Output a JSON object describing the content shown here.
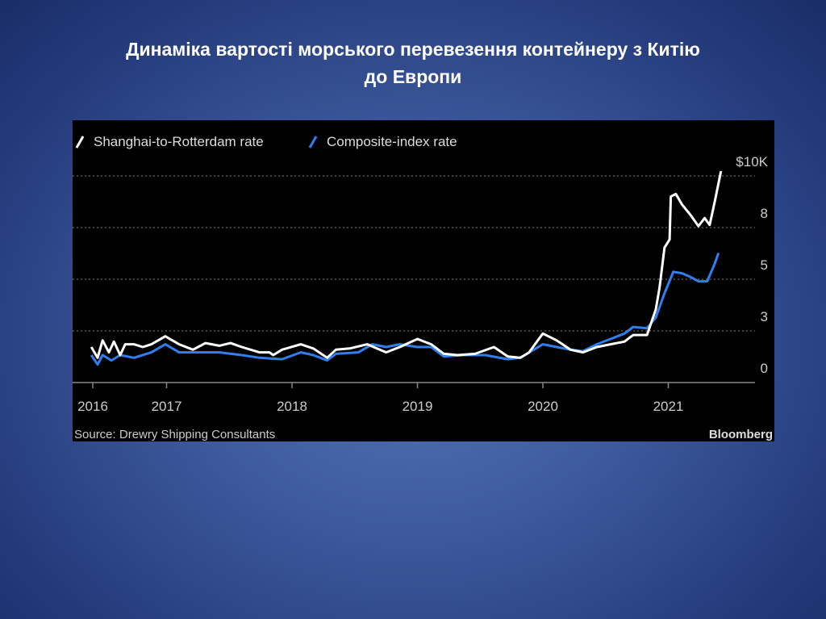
{
  "slide": {
    "title_line1": "Динаміка вартості морського перевезення контейнеру з Китію",
    "title_line2": "до Европи"
  },
  "chart_data": {
    "type": "line",
    "title": "",
    "xlabel": "",
    "ylabel": "",
    "x_ticks": [
      2016,
      2017,
      2018,
      2019,
      2020,
      2021
    ],
    "x_tick_labels": [
      "2016",
      "2017",
      "2018",
      "2019",
      "2020",
      "2021"
    ],
    "y_ticks": [
      0,
      2.5,
      5,
      7.5,
      10
    ],
    "y_tick_labels": [
      "0",
      "3",
      "5",
      "8",
      "$10K"
    ],
    "ylim": [
      0,
      10
    ],
    "xlim": [
      2016.4,
      2021.65
    ],
    "grid": "horizontal dotted",
    "legend_position": "top-left",
    "source": "Source: Drewry Shipping Consultants",
    "brand": "Bloomberg",
    "series": [
      {
        "name": "Shanghai-to-Rotterdam rate",
        "color": "#ffffff",
        "x": [
          2016.4,
          2016.45,
          2016.49,
          2016.54,
          2016.58,
          2016.63,
          2016.67,
          2016.74,
          2016.81,
          2016.88,
          2016.99,
          2017.1,
          2017.21,
          2017.31,
          2017.42,
          2017.51,
          2017.6,
          2017.74,
          2017.82,
          2017.85,
          2017.92,
          2018.07,
          2018.17,
          2018.28,
          2018.35,
          2018.46,
          2018.6,
          2018.75,
          2018.86,
          2019.0,
          2019.11,
          2019.21,
          2019.32,
          2019.46,
          2019.61,
          2019.72,
          2019.82,
          2019.89,
          2020.0,
          2020.11,
          2020.22,
          2020.32,
          2020.43,
          2020.54,
          2020.65,
          2020.72,
          2020.83,
          2020.9,
          2020.93,
          2020.97,
          2021.01,
          2021.02,
          2021.06,
          2021.11,
          2021.18,
          2021.24,
          2021.29,
          2021.33,
          2021.37,
          2021.42
        ],
        "y": [
          1.72,
          1.2,
          2.04,
          1.46,
          1.98,
          1.33,
          1.85,
          1.85,
          1.72,
          1.85,
          2.24,
          1.85,
          1.59,
          1.91,
          1.78,
          1.91,
          1.72,
          1.46,
          1.46,
          1.33,
          1.59,
          1.85,
          1.65,
          1.2,
          1.59,
          1.65,
          1.85,
          1.46,
          1.72,
          2.11,
          1.85,
          1.39,
          1.33,
          1.39,
          1.72,
          1.26,
          1.2,
          1.46,
          2.37,
          2.04,
          1.59,
          1.46,
          1.72,
          1.85,
          1.98,
          2.3,
          2.3,
          3.54,
          4.58,
          6.53,
          6.92,
          9.0,
          9.13,
          8.61,
          8.09,
          7.57,
          7.96,
          7.63,
          8.74,
          10.23
        ]
      },
      {
        "name": "Composite-index rate",
        "color": "#2f7ff0",
        "x": [
          2016.4,
          2016.45,
          2016.49,
          2016.56,
          2016.63,
          2016.74,
          2016.88,
          2016.99,
          2017.1,
          2017.24,
          2017.42,
          2017.6,
          2017.74,
          2017.92,
          2018.07,
          2018.17,
          2018.28,
          2018.35,
          2018.53,
          2018.64,
          2018.75,
          2018.86,
          2019.0,
          2019.11,
          2019.21,
          2019.36,
          2019.54,
          2019.72,
          2019.82,
          2020.0,
          2020.11,
          2020.22,
          2020.32,
          2020.43,
          2020.54,
          2020.65,
          2020.72,
          2020.83,
          2020.9,
          2020.97,
          2021.04,
          2021.11,
          2021.18,
          2021.24,
          2021.31,
          2021.37,
          2021.4
        ],
        "y": [
          1.33,
          0.87,
          1.33,
          1.07,
          1.33,
          1.2,
          1.46,
          1.85,
          1.46,
          1.46,
          1.46,
          1.33,
          1.2,
          1.13,
          1.46,
          1.33,
          1.07,
          1.39,
          1.46,
          1.85,
          1.72,
          1.85,
          1.72,
          1.72,
          1.26,
          1.33,
          1.33,
          1.13,
          1.2,
          1.85,
          1.72,
          1.59,
          1.52,
          1.85,
          2.11,
          2.37,
          2.69,
          2.63,
          3.15,
          4.32,
          5.36,
          5.29,
          5.1,
          4.9,
          4.9,
          5.75,
          6.27
        ]
      }
    ]
  }
}
